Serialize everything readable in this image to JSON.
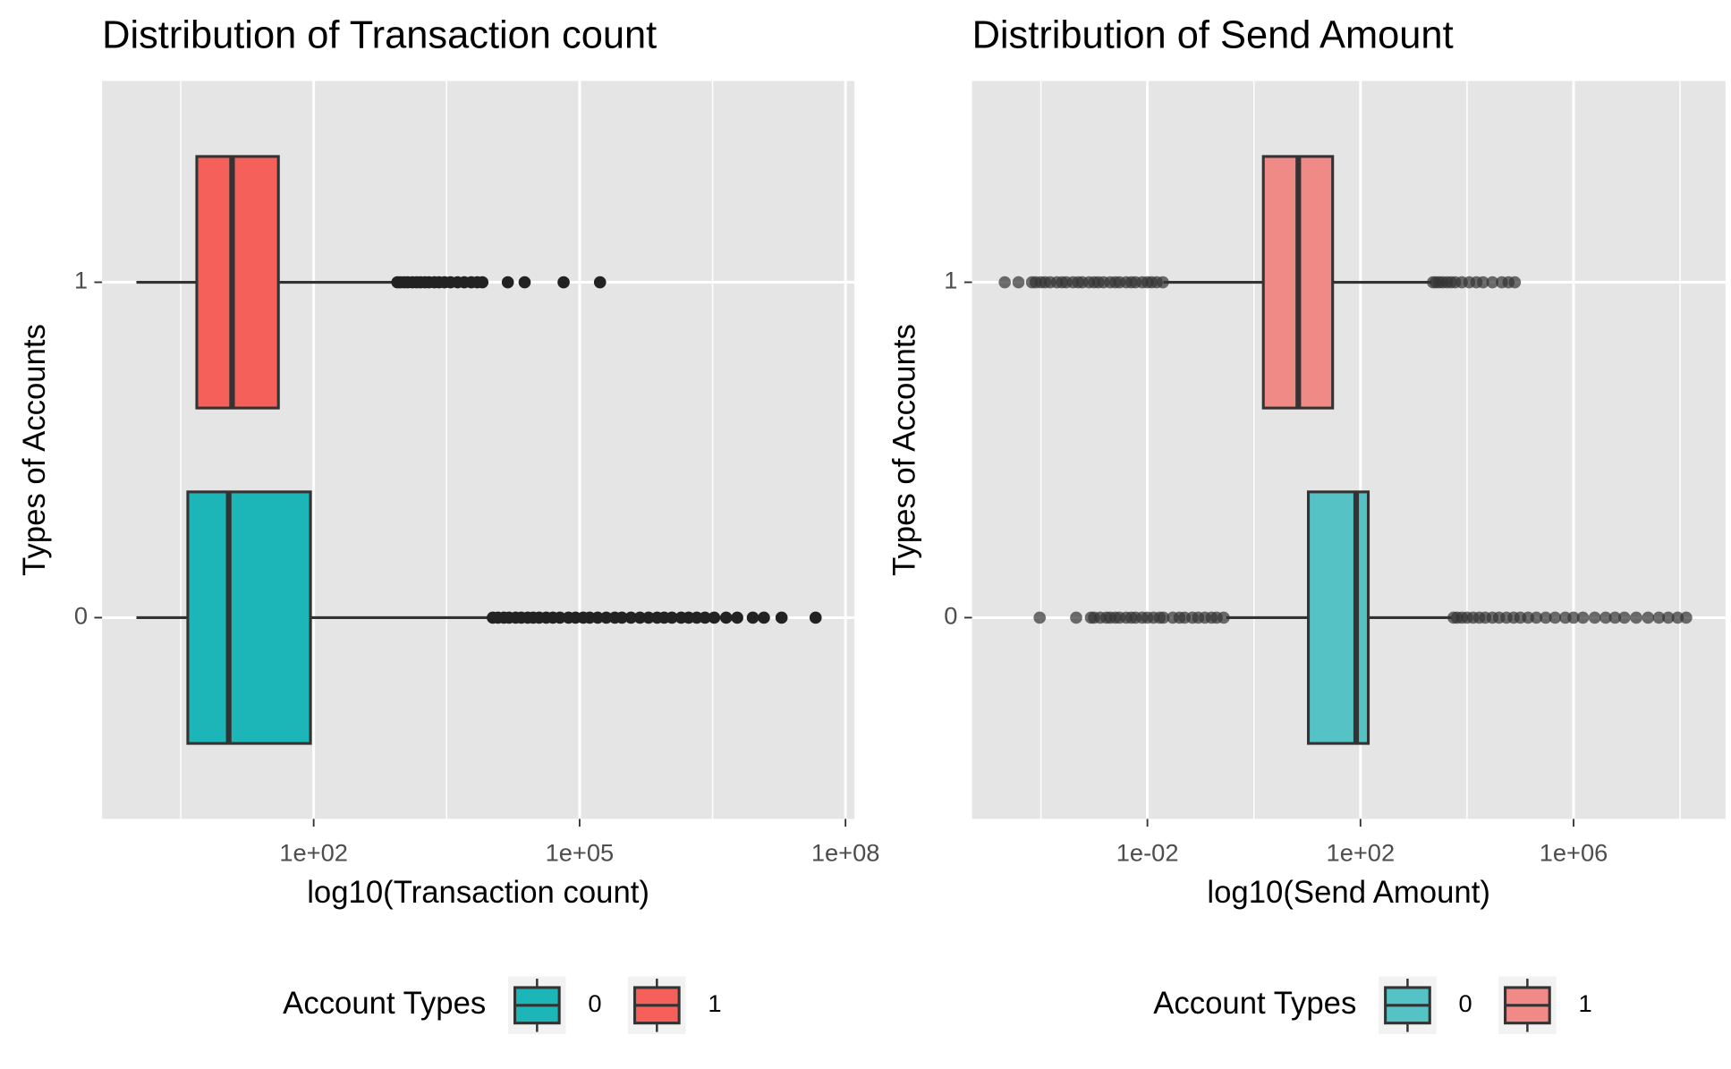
{
  "chart_data": [
    {
      "type": "boxplot",
      "title": "Distribution of Transaction count",
      "xlabel": "log10(Transaction count)",
      "ylabel": "Types of Accounts",
      "xscale": "log",
      "categories": [
        "0",
        "1"
      ],
      "xlim": [
        0.41,
        126000000
      ],
      "xticks": [
        {
          "value": 100,
          "label": "1e+02"
        },
        {
          "value": 100000,
          "label": "1e+05"
        },
        {
          "value": 100000000,
          "label": "1e+08"
        }
      ],
      "xminor": [
        3.16,
        3162,
        3162278
      ],
      "grid": true,
      "legend_title": "Account Types",
      "legend": "bottom",
      "outlier_color": "#222222",
      "outlier_opacity": 1,
      "series": [
        {
          "name": "0",
          "color": "#1cb5b8",
          "whisker_low": 1,
          "q1": 3.8,
          "median": 11,
          "q3": 92,
          "whisker_high": 10000,
          "outliers": [
            10500,
            12000,
            14000,
            16000,
            19000,
            22000,
            26000,
            30000,
            35000,
            42000,
            50000,
            60000,
            75000,
            90000,
            110000,
            130000,
            160000,
            200000,
            250000,
            300000,
            380000,
            480000,
            600000,
            750000,
            900000,
            1100000,
            1400000,
            1700000,
            2100000,
            2600000,
            3300000,
            4500000,
            6000000,
            9000000,
            12000000,
            19000000,
            46000000
          ]
        },
        {
          "name": "1",
          "color": "#f5605a",
          "whisker_low": 1,
          "q1": 4.8,
          "median": 12,
          "q3": 40,
          "whisker_high": 870,
          "outliers": [
            880,
            950,
            1050,
            1150,
            1300,
            1450,
            1600,
            1800,
            2000,
            2300,
            2600,
            3000,
            3500,
            4200,
            5000,
            6000,
            7000,
            8000,
            15500,
            24000,
            66000,
            170000
          ]
        }
      ]
    },
    {
      "type": "boxplot",
      "title": "Distribution of Send Amount",
      "xlabel": "log10(Send Amount)",
      "ylabel": "Types of Accounts",
      "xscale": "log",
      "categories": [
        "0",
        "1"
      ],
      "xlim": [
        5.1e-06,
        710000000
      ],
      "xticks": [
        {
          "value": 0.01,
          "label": "1e-02"
        },
        {
          "value": 100,
          "label": "1e+02"
        },
        {
          "value": 1000000,
          "label": "1e+06"
        }
      ],
      "xminor": [
        0.0001,
        1,
        10000,
        100000000
      ],
      "grid": true,
      "legend_title": "Account Types",
      "legend": "bottom",
      "outlier_color": "#333333",
      "outlier_opacity": 0.7,
      "series": [
        {
          "name": "0",
          "color": "#55c3c5",
          "whisker_low": 0.3,
          "q1": 10.5,
          "median": 83,
          "q3": 140,
          "whisker_high": 5100,
          "outliers": [
            9.5e-05,
            0.00046,
            0.00087,
            0.001,
            0.0013,
            0.0017,
            0.002,
            0.0025,
            0.003,
            0.004,
            0.005,
            0.006,
            0.008,
            0.01,
            0.013,
            0.017,
            0.02,
            0.03,
            0.04,
            0.05,
            0.07,
            0.09,
            0.12,
            0.16,
            0.2,
            0.27,
            5600,
            6500,
            8000,
            10000,
            13000,
            17000,
            22000,
            30000,
            40000,
            55000,
            75000,
            100000,
            140000,
            200000,
            300000,
            450000,
            700000,
            1000000,
            1500000,
            2500000,
            4000000,
            6000000,
            9000000,
            15000000,
            25000000,
            40000000,
            60000000,
            90000000,
            130000000
          ]
        },
        {
          "name": "1",
          "color": "#f08a87",
          "whisker_low": 0.02,
          "q1": 1.5,
          "median": 6.8,
          "q3": 30,
          "whisker_high": 2150,
          "outliers": [
            2.1e-05,
            3.8e-05,
            6.8e-05,
            8e-05,
            0.0001,
            0.00012,
            0.00015,
            0.0002,
            0.00025,
            0.0003,
            0.0004,
            0.0005,
            0.0006,
            0.0008,
            0.001,
            0.0012,
            0.0015,
            0.002,
            0.0025,
            0.003,
            0.004,
            0.005,
            0.006,
            0.008,
            0.01,
            0.012,
            0.015,
            0.0195,
            2300,
            2600,
            3000,
            3500,
            4200,
            5000,
            6000,
            8000,
            11000,
            15000,
            20000,
            30000,
            45000,
            60000,
            79000
          ]
        }
      ]
    }
  ]
}
